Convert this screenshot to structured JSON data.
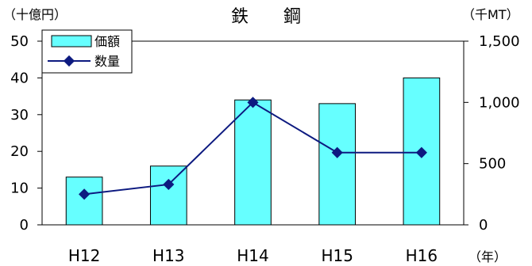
{
  "chart_data": {
    "type": "bar",
    "title": "鉄　　鋼",
    "left_unit": "（十億円）",
    "right_unit": "（千MT）",
    "x_unit": "（年）",
    "categories": [
      "H12",
      "H13",
      "H14",
      "H15",
      "H16"
    ],
    "series": [
      {
        "name": "価額",
        "type": "bar",
        "axis": "left",
        "values": [
          13,
          16,
          34,
          33,
          40
        ],
        "color": "#66ffff",
        "edge": "#000000"
      },
      {
        "name": "数量",
        "type": "line",
        "axis": "right",
        "values": [
          250,
          330,
          1000,
          590,
          590
        ],
        "color": "#0d1a80"
      }
    ],
    "ylim_left": [
      0,
      50
    ],
    "yticks_left": [
      "0",
      "10",
      "20",
      "30",
      "40",
      "50"
    ],
    "ylim_right": [
      0,
      1500
    ],
    "yticks_right": [
      "0",
      "500",
      "1,000",
      "1,500"
    ],
    "grid": false,
    "legend_position": "top-left"
  }
}
